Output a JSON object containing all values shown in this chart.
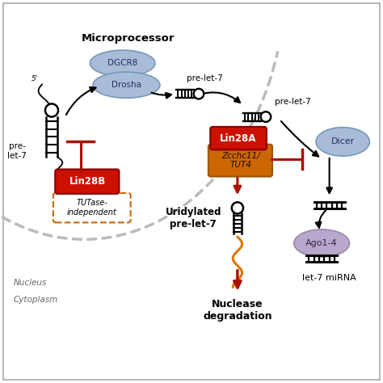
{
  "background_color": "#ffffff",
  "colors": {
    "lin28a_red": "#cc1100",
    "lin28b_red": "#cc1100",
    "zcchc_orange": "#cc6600",
    "tutase_border": "#cc6600",
    "dgcr8_blue": "#a8bcd8",
    "drosha_blue": "#a8bcd8",
    "dicer_blue": "#a8bcd8",
    "ago_purple": "#b8a8cc",
    "inhibit_red": "#aa1100",
    "arrow_dark": "#222222",
    "arrow_red": "#aa1100",
    "uridyl_orange": "#dd7700",
    "nucleus_arc": "#bbbbbb",
    "nucleus_bg": "#e8e8e8"
  },
  "labels": {
    "microprocessor": "Microprocessor",
    "dgcr8": "DGCR8",
    "drosha": "Drosha",
    "dicer": "Dicer",
    "ago": "Ago1-4",
    "lin28a": "Lin28A",
    "lin28b": "Lin28B",
    "zcchc": "Zcchc11/\nTUT4",
    "tutase": "TUTase-\nindependent",
    "uridylated": "Uridylated\npre-let-7",
    "nuclease": "Nuclease\ndegradation",
    "let7": "let-7 miRNA",
    "nucleus": "Nucleus",
    "cytoplasm": "Cytoplasm",
    "pre_let7": "pre-let-7"
  }
}
